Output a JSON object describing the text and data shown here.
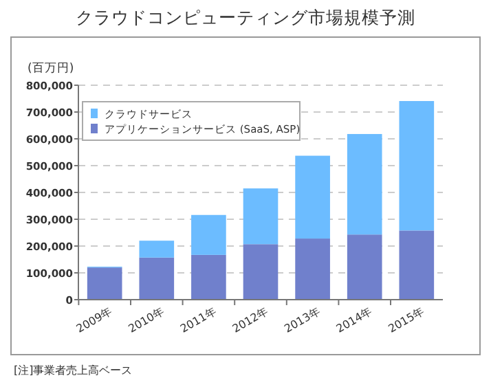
{
  "chart_data": {
    "type": "bar",
    "stacked": true,
    "title": "クラウドコンピューティング市場規模予測",
    "ylabel": "(百万円)",
    "categories": [
      "2009年",
      "2010年",
      "2011年",
      "2012年",
      "2013年",
      "2014年",
      "2015年"
    ],
    "series": [
      {
        "name": "アプリケーションサービス (SaaS, ASP)",
        "color": "#7080cc",
        "values": [
          120000,
          157000,
          167000,
          207000,
          228000,
          243000,
          258000
        ]
      },
      {
        "name": "クラウドサービス",
        "color": "#6cbcff",
        "values": [
          3000,
          63000,
          149000,
          208000,
          309000,
          375000,
          483000
        ]
      }
    ],
    "ylim": [
      0,
      800000
    ],
    "yticks": [
      {
        "value": 0,
        "label": "0"
      },
      {
        "value": 100000,
        "label": "100,000"
      },
      {
        "value": 200000,
        "label": "200,000"
      },
      {
        "value": 300000,
        "label": "300,000"
      },
      {
        "value": 400000,
        "label": "400,000"
      },
      {
        "value": 500000,
        "label": "500,000"
      },
      {
        "value": 600000,
        "label": "600,000"
      },
      {
        "value": 700000,
        "label": "700,000"
      },
      {
        "value": 800000,
        "label": "800,000"
      }
    ],
    "grid": "y",
    "legend": "top left",
    "annotations": [
      "[注]事業者売上高ベース"
    ]
  }
}
